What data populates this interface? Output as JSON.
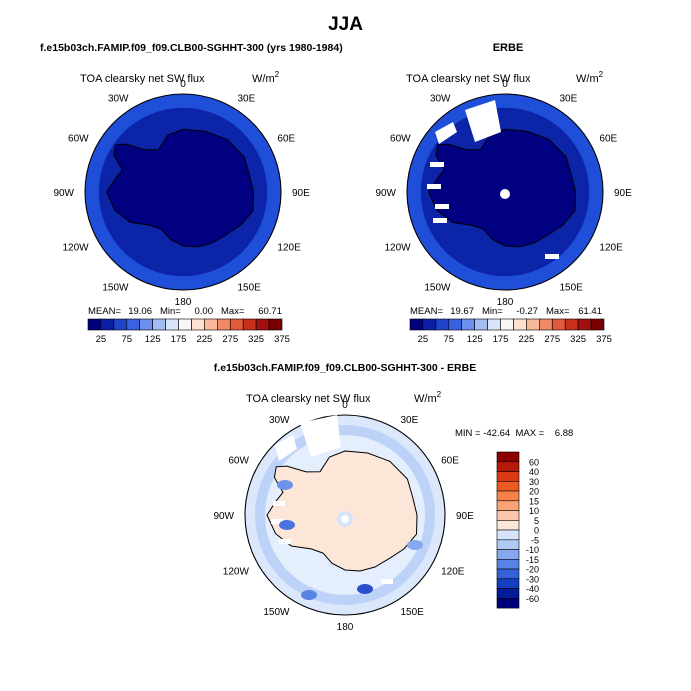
{
  "page_title": "JJA",
  "panels": [
    {
      "id": "model",
      "header": "f.e15b03ch.FAMIP.f09_f09.CLB00-SGHHT-300 (yrs 1980-1984)",
      "variable": "TOA clearsky net SW flux",
      "units": "W/m",
      "units_sup": "2",
      "stats": {
        "mean_label": "MEAN=",
        "mean": "19.06",
        "min_label": "Min=",
        "min": "0.00",
        "max_label": "Max=",
        "max": "60.71"
      }
    },
    {
      "id": "obs",
      "header": "ERBE",
      "variable": "TOA clearsky net SW flux",
      "units": "W/m",
      "units_sup": "2",
      "stats": {
        "mean_label": "MEAN=",
        "mean": "19.67",
        "min_label": "Min=",
        "min": "-0.27",
        "max_label": "Max=",
        "max": "61.41"
      }
    },
    {
      "id": "diff",
      "header": "f.e15b03ch.FAMIP.f09_f09.CLB00-SGHHT-300 - ERBE",
      "variable": "TOA clearsky net SW flux",
      "units": "W/m",
      "units_sup": "2",
      "stats_text": "MIN = -42.64  MAX =    6.88"
    }
  ],
  "longitude_labels": [
    "0",
    "30E",
    "60E",
    "90E",
    "120E",
    "150E",
    "180",
    "150W",
    "120W",
    "90W",
    "60W",
    "30W"
  ],
  "colorbar_abs": {
    "labels": [
      "25",
      "75",
      "125",
      "175",
      "225",
      "275",
      "325",
      "375"
    ],
    "colors": [
      "#00007f",
      "#0a1fa6",
      "#1e44cc",
      "#3a62e0",
      "#6b8fea",
      "#a3bdf2",
      "#d8e4fa",
      "#f7f7f7",
      "#fde0d0",
      "#f8b89a",
      "#f08a66",
      "#e35a3a",
      "#c8301e",
      "#a01010",
      "#780000"
    ]
  },
  "colorbar_diff": {
    "labels": [
      "60",
      "40",
      "30",
      "20",
      "15",
      "10",
      "5",
      "0",
      "-5",
      "-10",
      "-15",
      "-20",
      "-30",
      "-40",
      "-60"
    ],
    "colors": [
      "#8b0000",
      "#b81a0a",
      "#d93a12",
      "#ef5a22",
      "#f78046",
      "#fba276",
      "#fdc6aa",
      "#fde6d8",
      "#d6e4fb",
      "#aecaf5",
      "#86a8ef",
      "#5a83e6",
      "#3460d8",
      "#143ec0",
      "#021c9a",
      "#00007a"
    ]
  }
}
